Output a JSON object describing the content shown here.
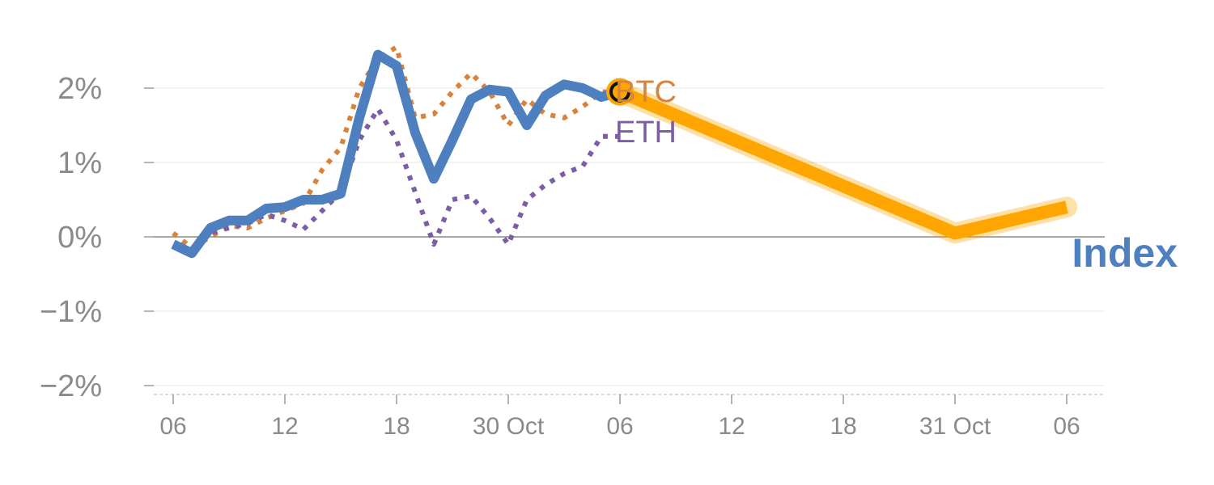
{
  "chart_data": {
    "type": "line",
    "title": "",
    "xlabel": "",
    "ylabel": "",
    "ylim": [
      -2.1,
      2.7
    ],
    "yticks": [
      {
        "value": 2,
        "label": "2%"
      },
      {
        "value": 1,
        "label": "1%"
      },
      {
        "value": 0,
        "label": "0%"
      },
      {
        "value": -1,
        "label": "−1%"
      },
      {
        "value": -2,
        "label": "−2%"
      }
    ],
    "xticks": [
      {
        "day": 0,
        "label": "06"
      },
      {
        "day": 6,
        "label": "12"
      },
      {
        "day": 12,
        "label": "18"
      },
      {
        "day": 18,
        "label": "30 Oct"
      },
      {
        "day": 24,
        "label": "06"
      },
      {
        "day": 30,
        "label": "12"
      },
      {
        "day": 36,
        "label": "18"
      },
      {
        "day": 42,
        "label": "31 Oct"
      },
      {
        "day": 48,
        "label": "06"
      }
    ],
    "xlim": [
      -1,
      50
    ],
    "grid": true,
    "series": [
      {
        "name": "Index",
        "color": "#4e7fbf",
        "style": "solid",
        "x": [
          0,
          1,
          2,
          3,
          4,
          5,
          6,
          7,
          8,
          9,
          10,
          11,
          12,
          13,
          14,
          15,
          16,
          17,
          18,
          19,
          20,
          21,
          22,
          23,
          24
        ],
        "y": [
          -0.1,
          -0.22,
          0.12,
          0.22,
          0.22,
          0.38,
          0.4,
          0.5,
          0.5,
          0.58,
          1.6,
          2.45,
          2.3,
          1.4,
          0.78,
          1.3,
          1.85,
          1.98,
          1.95,
          1.5,
          1.9,
          2.05,
          2.0,
          1.88,
          1.95
        ]
      },
      {
        "name": "BTC",
        "color": "#d9823b",
        "style": "dotted",
        "x": [
          0,
          1,
          2,
          3,
          4,
          5,
          6,
          7,
          8,
          9,
          10,
          11,
          12,
          13,
          14,
          15,
          16,
          17,
          18,
          19,
          20,
          21,
          22,
          23,
          24
        ],
        "y": [
          0.05,
          -0.15,
          0.0,
          0.15,
          0.12,
          0.25,
          0.35,
          0.45,
          0.9,
          1.2,
          2.0,
          2.4,
          2.55,
          1.6,
          1.65,
          1.95,
          2.2,
          1.95,
          1.5,
          1.85,
          1.65,
          1.6,
          1.75,
          1.95,
          1.95
        ]
      },
      {
        "name": "ETH",
        "color": "#7b5ea7",
        "style": "dotted",
        "x": [
          0,
          1,
          2,
          3,
          4,
          5,
          6,
          7,
          8,
          9,
          10,
          11,
          12,
          13,
          14,
          15,
          16,
          17,
          18,
          19,
          20,
          21,
          22,
          23,
          24
        ],
        "y": [
          -0.1,
          -0.2,
          0.05,
          0.12,
          0.18,
          0.3,
          0.22,
          0.1,
          0.35,
          0.6,
          1.3,
          1.72,
          1.3,
          0.6,
          -0.1,
          0.5,
          0.55,
          0.25,
          -0.1,
          0.5,
          0.7,
          0.85,
          0.95,
          1.35,
          1.35
        ]
      }
    ],
    "projection": {
      "color": "#ffa500",
      "x": [
        24,
        42,
        48
      ],
      "y": [
        1.95,
        0.05,
        0.4
      ]
    },
    "marker": {
      "day": 24,
      "value": 1.95
    }
  }
}
